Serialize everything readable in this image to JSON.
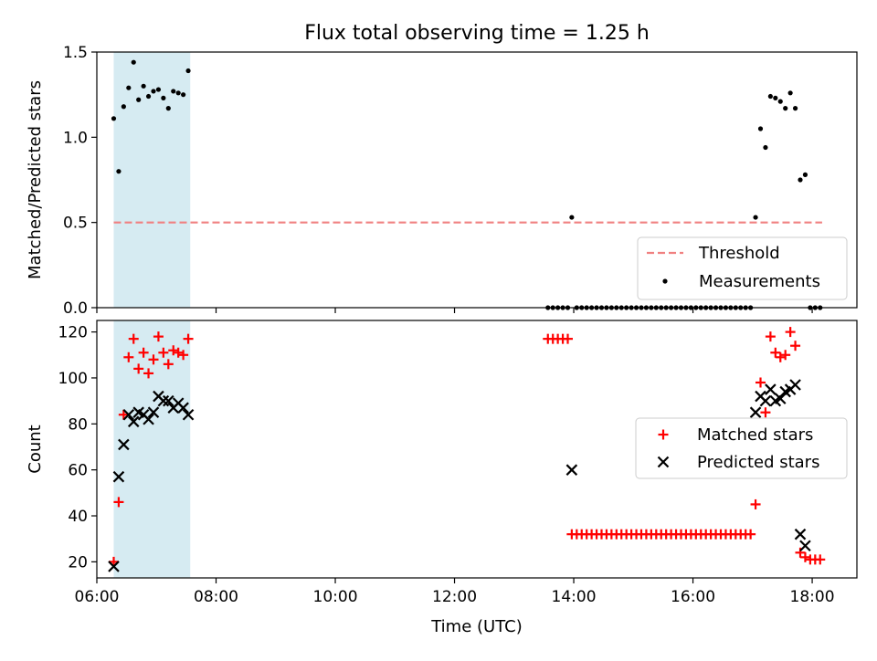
{
  "figure": {
    "title": "Flux total observing time = 1.25 h",
    "xlabel": "Time (UTC)"
  },
  "colors": {
    "threshold": "#f08080",
    "measurement": "#000000",
    "matched": "#ff0000",
    "predicted": "#000000",
    "shade": "#add8e6"
  },
  "chart_data": [
    {
      "type": "scatter",
      "ylabel": "Matched/Predicted stars",
      "xlim": [
        "06:00",
        "18:45"
      ],
      "ylim": [
        0,
        1.5
      ],
      "yticks": [
        0.0,
        0.5,
        1.0,
        1.5
      ],
      "ytick_labels": [
        "0.0",
        "0.5",
        "1.0",
        "1.5"
      ],
      "xticks": [
        "06:00",
        "08:00",
        "10:00",
        "12:00",
        "14:00",
        "16:00",
        "18:00"
      ],
      "xtick_labels_shown": false,
      "shaded_span": [
        "06:17",
        "07:34"
      ],
      "grid": false,
      "legend": {
        "placement": "lower right",
        "entries": [
          {
            "label": "Threshold",
            "style": "dashed-line"
          },
          {
            "label": "Measurements",
            "style": "dot"
          }
        ]
      },
      "series": [
        {
          "name": "Threshold",
          "kind": "line",
          "x": [
            "06:17",
            "18:10"
          ],
          "y": [
            0.5,
            0.5
          ]
        },
        {
          "name": "Measurements",
          "kind": "points",
          "x": [
            "06:17",
            "06:22",
            "06:27",
            "06:32",
            "06:37",
            "06:42",
            "06:47",
            "06:52",
            "06:57",
            "07:02",
            "07:07",
            "07:12",
            "07:17",
            "07:22",
            "07:27",
            "07:32",
            "13:34",
            "13:39",
            "13:44",
            "13:49",
            "13:54",
            "13:58",
            "14:03",
            "14:08",
            "14:13",
            "14:18",
            "14:23",
            "14:28",
            "14:33",
            "14:38",
            "14:43",
            "14:48",
            "14:53",
            "14:58",
            "15:03",
            "15:08",
            "15:13",
            "15:18",
            "15:23",
            "15:28",
            "15:33",
            "15:38",
            "15:43",
            "15:48",
            "15:53",
            "15:58",
            "16:03",
            "16:08",
            "16:13",
            "16:18",
            "16:23",
            "16:28",
            "16:33",
            "16:38",
            "16:43",
            "16:48",
            "16:53",
            "16:58",
            "17:03",
            "17:08",
            "17:13",
            "17:18",
            "17:23",
            "17:28",
            "17:33",
            "17:38",
            "17:43",
            "17:48",
            "17:53",
            "17:58",
            "18:03",
            "18:08"
          ],
          "y": [
            1.11,
            0.8,
            1.18,
            1.29,
            1.44,
            1.22,
            1.3,
            1.24,
            1.27,
            1.28,
            1.23,
            1.17,
            1.27,
            1.26,
            1.25,
            1.39,
            0,
            0,
            0,
            0,
            0,
            0.53,
            0,
            0,
            0,
            0,
            0,
            0,
            0,
            0,
            0,
            0,
            0,
            0,
            0,
            0,
            0,
            0,
            0,
            0,
            0,
            0,
            0,
            0,
            0,
            0,
            0,
            0,
            0,
            0,
            0,
            0,
            0,
            0,
            0,
            0,
            0,
            0,
            0.53,
            1.05,
            0.94,
            1.24,
            1.23,
            1.21,
            1.17,
            1.26,
            1.17,
            0.75,
            0.78,
            0,
            0,
            0
          ]
        }
      ]
    },
    {
      "type": "scatter",
      "ylabel": "Count",
      "xlim": [
        "06:00",
        "18:45"
      ],
      "ylim": [
        13,
        125
      ],
      "yticks": [
        20,
        40,
        60,
        80,
        100,
        120
      ],
      "ytick_labels": [
        "20",
        "40",
        "60",
        "80",
        "100",
        "120"
      ],
      "xticks": [
        "06:00",
        "08:00",
        "10:00",
        "12:00",
        "14:00",
        "16:00",
        "18:00"
      ],
      "xtick_labels": [
        "06:00",
        "08:00",
        "10:00",
        "12:00",
        "14:00",
        "16:00",
        "18:00"
      ],
      "shaded_span": [
        "06:17",
        "07:34"
      ],
      "grid": false,
      "legend": {
        "placement": "center right",
        "entries": [
          {
            "label": "Matched stars",
            "style": "plus"
          },
          {
            "label": "Predicted stars",
            "style": "x"
          }
        ]
      },
      "series": [
        {
          "name": "Matched stars",
          "marker": "plus",
          "x": [
            "06:17",
            "06:22",
            "06:27",
            "06:32",
            "06:37",
            "06:42",
            "06:47",
            "06:52",
            "06:57",
            "07:02",
            "07:07",
            "07:12",
            "07:17",
            "07:22",
            "07:27",
            "07:32",
            "13:34",
            "13:39",
            "13:44",
            "13:49",
            "13:54",
            "13:58",
            "14:03",
            "14:08",
            "14:13",
            "14:18",
            "14:23",
            "14:28",
            "14:33",
            "14:38",
            "14:43",
            "14:48",
            "14:53",
            "14:58",
            "15:03",
            "15:08",
            "15:13",
            "15:18",
            "15:23",
            "15:28",
            "15:33",
            "15:38",
            "15:43",
            "15:48",
            "15:53",
            "15:58",
            "16:03",
            "16:08",
            "16:13",
            "16:18",
            "16:23",
            "16:28",
            "16:33",
            "16:38",
            "16:43",
            "16:48",
            "16:53",
            "16:58",
            "17:03",
            "17:08",
            "17:13",
            "17:18",
            "17:23",
            "17:28",
            "17:33",
            "17:38",
            "17:43",
            "17:48",
            "17:53",
            "17:58",
            "18:03",
            "18:08"
          ],
          "y": [
            20,
            46,
            84,
            109,
            117,
            104,
            111,
            102,
            108,
            118,
            111,
            106,
            112,
            111,
            110,
            117,
            117,
            117,
            117,
            117,
            117,
            32,
            32,
            32,
            32,
            32,
            32,
            32,
            32,
            32,
            32,
            32,
            32,
            32,
            32,
            32,
            32,
            32,
            32,
            32,
            32,
            32,
            32,
            32,
            32,
            32,
            32,
            32,
            32,
            32,
            32,
            32,
            32,
            32,
            32,
            32,
            32,
            32,
            45,
            98,
            85,
            118,
            111,
            109,
            110,
            120,
            114,
            24,
            22,
            21,
            21,
            21
          ]
        },
        {
          "name": "Predicted stars",
          "marker": "x",
          "x": [
            "06:17",
            "06:22",
            "06:27",
            "06:32",
            "06:37",
            "06:42",
            "06:47",
            "06:52",
            "06:57",
            "07:02",
            "07:07",
            "07:12",
            "07:17",
            "07:22",
            "07:27",
            "07:32",
            "13:58",
            "17:03",
            "17:08",
            "17:13",
            "17:18",
            "17:23",
            "17:28",
            "17:33",
            "17:38",
            "17:43",
            "17:48",
            "17:53"
          ],
          "y": [
            18,
            57,
            71,
            84,
            81,
            85,
            84,
            82,
            85,
            92,
            90,
            90,
            87,
            89,
            87,
            84,
            60,
            85,
            92,
            90,
            95,
            90,
            91,
            94,
            95,
            97,
            32,
            27
          ]
        }
      ]
    }
  ]
}
